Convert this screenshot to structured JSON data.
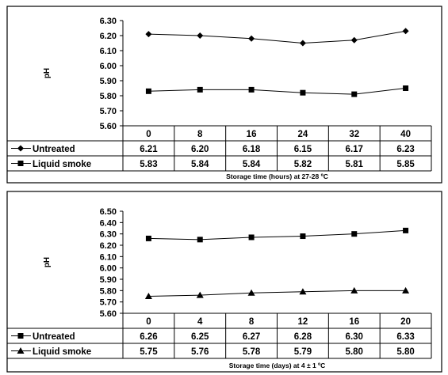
{
  "chart_data": [
    {
      "type": "line",
      "ylabel": "pH",
      "xlabel": "Storage time (hours) at 27-28 ºC",
      "ylim": [
        5.6,
        6.3
      ],
      "yticks": [
        "6.30",
        "6.20",
        "6.10",
        "6.00",
        "5.90",
        "5.80",
        "5.70",
        "5.60"
      ],
      "categories": [
        "0",
        "8",
        "16",
        "24",
        "32",
        "40"
      ],
      "grid": false,
      "legend": "data table rows",
      "series": [
        {
          "name": "Untreated",
          "marker": "diamond",
          "values": [
            6.21,
            6.2,
            6.18,
            6.15,
            6.17,
            6.23
          ],
          "labels": [
            "6.21",
            "6.20",
            "6.18",
            "6.15",
            "6.17",
            "6.23"
          ]
        },
        {
          "name": "Liquid smoke",
          "marker": "square",
          "values": [
            5.83,
            5.84,
            5.84,
            5.82,
            5.81,
            5.85
          ],
          "labels": [
            "5.83",
            "5.84",
            "5.84",
            "5.82",
            "5.81",
            "5.85"
          ]
        }
      ]
    },
    {
      "type": "line",
      "ylabel": "pH",
      "xlabel": "Storage time (days) at 4 ± 1 ºC",
      "ylim": [
        5.6,
        6.5
      ],
      "yticks": [
        "6.50",
        "6.40",
        "6.30",
        "6.20",
        "6.10",
        "6.00",
        "5.90",
        "5.80",
        "5.70",
        "5.60"
      ],
      "categories": [
        "0",
        "4",
        "8",
        "12",
        "16",
        "20"
      ],
      "grid": false,
      "legend": "data table rows",
      "series": [
        {
          "name": "Untreated",
          "marker": "square",
          "values": [
            6.26,
            6.25,
            6.27,
            6.28,
            6.3,
            6.33
          ],
          "labels": [
            "6.26",
            "6.25",
            "6.27",
            "6.28",
            "6.30",
            "6.33"
          ]
        },
        {
          "name": "Liquid smoke",
          "marker": "triangle",
          "values": [
            5.75,
            5.76,
            5.78,
            5.79,
            5.8,
            5.8
          ],
          "labels": [
            "5.75",
            "5.76",
            "5.78",
            "5.79",
            "5.80",
            "5.80"
          ]
        }
      ]
    }
  ]
}
